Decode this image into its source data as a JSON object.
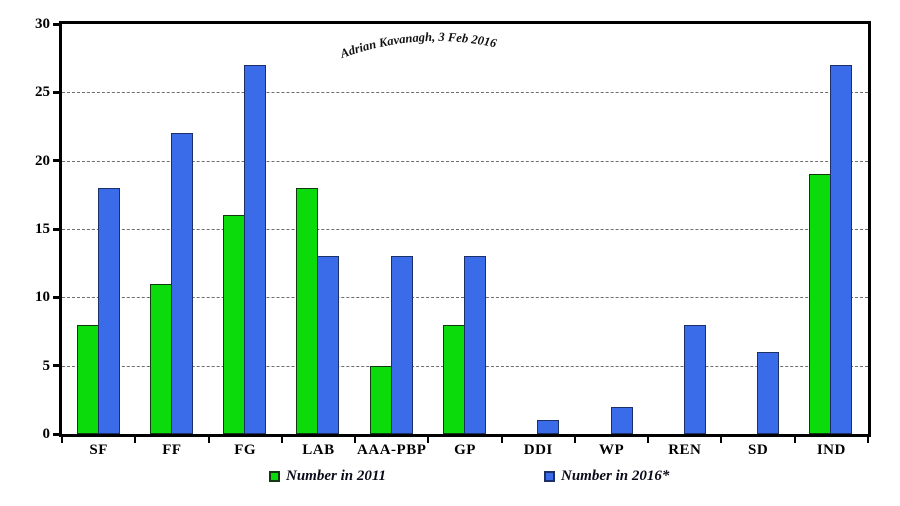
{
  "chart_data": {
    "type": "bar",
    "title": "",
    "xlabel": "",
    "ylabel": "",
    "categories": [
      "SF",
      "FF",
      "FG",
      "LAB",
      "AAA-PBP",
      "GP",
      "DDI",
      "WP",
      "REN",
      "SD",
      "IND"
    ],
    "series": [
      {
        "name": "Number in 2011",
        "color": "#0bdb0b",
        "border_color": "#123812",
        "values": [
          8,
          11,
          16,
          18,
          5,
          8,
          0,
          0,
          0,
          0,
          19
        ]
      },
      {
        "name": "Number in 2016*",
        "color": "#3a6be9",
        "border_color": "#1c2f66",
        "values": [
          18,
          22,
          27,
          13,
          13,
          13,
          1,
          2,
          8,
          6,
          27
        ]
      }
    ],
    "ylim": [
      0,
      30
    ],
    "yticks": [
      0,
      5,
      10,
      15,
      20,
      25,
      30
    ],
    "gridlines": [
      5,
      10,
      15,
      20,
      25
    ],
    "grid_style": "horizontal dashed",
    "legend_position": "bottom",
    "annotation": "Adrian Kavanagh, 3 Feb 2016"
  },
  "annotation": {
    "text": "Adrian Kavanagh, 3 Feb 2016"
  },
  "legend": {
    "items": [
      {
        "label": "Number in 2011",
        "color": "#0bdb0b",
        "border_color": "#123812"
      },
      {
        "label": "Number in 2016*",
        "color": "#3a6be9",
        "border_color": "#1c2f66"
      }
    ]
  },
  "colors": {
    "axis_frame": "#000000",
    "gridline": "#6e6e6e",
    "background": "#ffffff",
    "text": "#000000"
  }
}
